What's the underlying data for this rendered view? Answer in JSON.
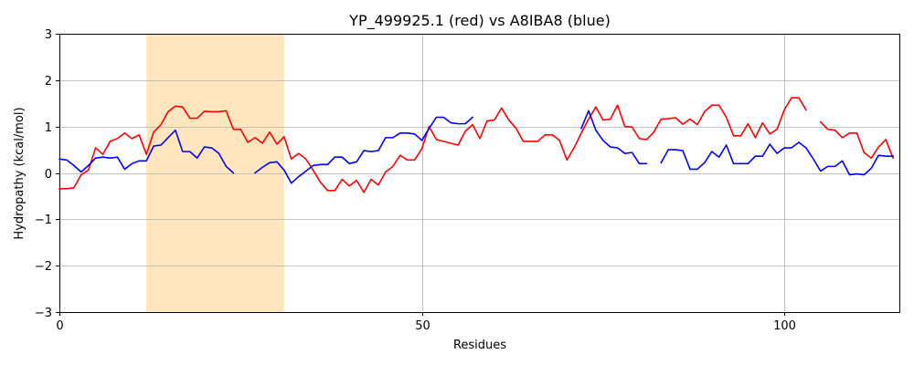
{
  "chart_data": {
    "type": "line",
    "title": "YP_499925.1 (red) vs A8IBA8 (blue)",
    "xlabel": "Residues",
    "ylabel": "Hydropathy (kcal/mol)",
    "xlim": [
      0,
      116
    ],
    "ylim": [
      -3,
      3
    ],
    "xticks": [
      0,
      50,
      100
    ],
    "yticks": [
      -3,
      -2,
      -1,
      0,
      1,
      2,
      3
    ],
    "grid": true,
    "highlight": {
      "x_start": 12,
      "x_end": 31,
      "color": "#ffe6bf"
    },
    "series": [
      {
        "color": "#ff0000",
        "segments": [
          [
            [
              0,
              -0.34
            ],
            [
              1,
              -0.34
            ],
            [
              2,
              -0.32
            ],
            [
              3,
              -0.04
            ],
            [
              4,
              0.06
            ],
            [
              5,
              0.54
            ],
            [
              6,
              0.4
            ],
            [
              7,
              0.68
            ],
            [
              8,
              0.74
            ],
            [
              9,
              0.86
            ],
            [
              10,
              0.74
            ],
            [
              11,
              0.82
            ],
            [
              12,
              0.4
            ],
            [
              13,
              0.88
            ],
            [
              14,
              1.04
            ],
            [
              15,
              1.32
            ],
            [
              16,
              1.44
            ],
            [
              17,
              1.42
            ],
            [
              18,
              1.18
            ],
            [
              19,
              1.18
            ],
            [
              20,
              1.33
            ],
            [
              21,
              1.32
            ],
            [
              22,
              1.32
            ],
            [
              23,
              1.34
            ],
            [
              24,
              0.94
            ],
            [
              25,
              0.94
            ],
            [
              26,
              0.66
            ],
            [
              27,
              0.76
            ],
            [
              28,
              0.64
            ],
            [
              29,
              0.88
            ],
            [
              30,
              0.62
            ],
            [
              31,
              0.78
            ],
            [
              32,
              0.3
            ],
            [
              33,
              0.42
            ],
            [
              34,
              0.3
            ],
            [
              35,
              0.06
            ],
            [
              36,
              -0.2
            ],
            [
              37,
              -0.38
            ],
            [
              38,
              -0.38
            ],
            [
              39,
              -0.14
            ],
            [
              40,
              -0.28
            ],
            [
              41,
              -0.16
            ],
            [
              42,
              -0.42
            ],
            [
              43,
              -0.14
            ],
            [
              44,
              -0.26
            ],
            [
              45,
              0.02
            ],
            [
              46,
              0.14
            ],
            [
              47,
              0.38
            ],
            [
              48,
              0.28
            ],
            [
              49,
              0.28
            ],
            [
              50,
              0.52
            ],
            [
              51,
              1.0
            ],
            [
              52,
              0.72
            ],
            [
              53,
              0.68
            ],
            [
              54,
              0.64
            ],
            [
              55,
              0.6
            ],
            [
              56,
              0.9
            ],
            [
              57,
              1.04
            ],
            [
              58,
              0.74
            ],
            [
              59,
              1.12
            ],
            [
              60,
              1.14
            ],
            [
              61,
              1.4
            ],
            [
              62,
              1.14
            ],
            [
              63,
              0.96
            ],
            [
              64,
              0.68
            ],
            [
              65,
              0.68
            ],
            [
              66,
              0.68
            ],
            [
              67,
              0.82
            ],
            [
              68,
              0.82
            ],
            [
              69,
              0.7
            ],
            [
              70,
              0.28
            ],
            [
              71,
              0.54
            ],
            [
              72,
              0.86
            ],
            [
              73,
              1.16
            ],
            [
              74,
              1.42
            ],
            [
              75,
              1.14
            ],
            [
              76,
              1.16
            ],
            [
              77,
              1.46
            ],
            [
              78,
              1.0
            ],
            [
              79,
              0.99
            ],
            [
              80,
              0.74
            ],
            [
              81,
              0.72
            ],
            [
              82,
              0.88
            ],
            [
              83,
              1.16
            ],
            [
              84,
              1.17
            ],
            [
              85,
              1.19
            ],
            [
              86,
              1.05
            ],
            [
              87,
              1.16
            ],
            [
              88,
              1.04
            ],
            [
              89,
              1.32
            ],
            [
              90,
              1.46
            ],
            [
              91,
              1.46
            ],
            [
              92,
              1.2
            ],
            [
              93,
              0.8
            ],
            [
              94,
              0.8
            ],
            [
              95,
              1.06
            ],
            [
              96,
              0.76
            ],
            [
              97,
              1.08
            ],
            [
              98,
              0.84
            ],
            [
              99,
              0.94
            ],
            [
              100,
              1.36
            ],
            [
              101,
              1.62
            ],
            [
              102,
              1.62
            ],
            [
              103,
              1.36
            ]
          ],
          [
            [
              105,
              1.1
            ],
            [
              106,
              0.94
            ],
            [
              107,
              0.92
            ],
            [
              108,
              0.76
            ],
            [
              109,
              0.86
            ],
            [
              110,
              0.86
            ],
            [
              111,
              0.44
            ],
            [
              112,
              0.32
            ],
            [
              113,
              0.56
            ],
            [
              114,
              0.72
            ],
            [
              115,
              0.32
            ]
          ]
        ]
      },
      {
        "color": "#0000ff",
        "segments": [
          [
            [
              0,
              0.3
            ],
            [
              1,
              0.28
            ],
            [
              2,
              0.16
            ],
            [
              3,
              0.02
            ],
            [
              4,
              0.16
            ],
            [
              5,
              0.32
            ],
            [
              6,
              0.34
            ],
            [
              7,
              0.32
            ],
            [
              8,
              0.34
            ],
            [
              9,
              0.08
            ],
            [
              10,
              0.2
            ],
            [
              11,
              0.26
            ],
            [
              12,
              0.26
            ],
            [
              13,
              0.58
            ],
            [
              14,
              0.6
            ],
            [
              15,
              0.76
            ],
            [
              16,
              0.92
            ],
            [
              17,
              0.46
            ],
            [
              18,
              0.46
            ],
            [
              19,
              0.32
            ],
            [
              20,
              0.56
            ],
            [
              21,
              0.54
            ],
            [
              22,
              0.42
            ],
            [
              23,
              0.14
            ],
            [
              24,
              0.0
            ]
          ],
          [
            [
              27,
              0.0
            ],
            [
              28,
              0.12
            ],
            [
              29,
              0.22
            ],
            [
              30,
              0.24
            ],
            [
              31,
              0.06
            ],
            [
              32,
              -0.22
            ],
            [
              33,
              -0.08
            ],
            [
              34,
              0.04
            ],
            [
              35,
              0.16
            ],
            [
              36,
              0.18
            ],
            [
              37,
              0.18
            ],
            [
              38,
              0.34
            ],
            [
              39,
              0.34
            ],
            [
              40,
              0.2
            ],
            [
              41,
              0.24
            ],
            [
              42,
              0.48
            ],
            [
              43,
              0.46
            ],
            [
              44,
              0.48
            ],
            [
              45,
              0.76
            ],
            [
              46,
              0.76
            ],
            [
              47,
              0.86
            ],
            [
              48,
              0.86
            ],
            [
              49,
              0.84
            ],
            [
              50,
              0.7
            ],
            [
              51,
              0.96
            ],
            [
              52,
              1.2
            ],
            [
              53,
              1.2
            ],
            [
              54,
              1.08
            ],
            [
              55,
              1.06
            ],
            [
              56,
              1.06
            ],
            [
              57,
              1.2
            ]
          ],
          [
            [
              72,
              0.96
            ],
            [
              73,
              1.34
            ],
            [
              74,
              0.92
            ],
            [
              75,
              0.7
            ],
            [
              76,
              0.56
            ],
            [
              77,
              0.54
            ],
            [
              78,
              0.42
            ],
            [
              79,
              0.44
            ],
            [
              80,
              0.2
            ],
            [
              81,
              0.2
            ]
          ],
          [
            [
              83,
              0.22
            ],
            [
              84,
              0.5
            ],
            [
              85,
              0.5
            ],
            [
              86,
              0.48
            ],
            [
              87,
              0.08
            ],
            [
              88,
              0.08
            ],
            [
              89,
              0.22
            ],
            [
              90,
              0.46
            ],
            [
              91,
              0.34
            ],
            [
              92,
              0.6
            ],
            [
              93,
              0.2
            ],
            [
              94,
              0.2
            ],
            [
              95,
              0.2
            ],
            [
              96,
              0.36
            ],
            [
              97,
              0.36
            ],
            [
              98,
              0.62
            ],
            [
              99,
              0.42
            ],
            [
              100,
              0.54
            ],
            [
              101,
              0.54
            ],
            [
              102,
              0.66
            ],
            [
              103,
              0.54
            ],
            [
              104,
              0.3
            ],
            [
              105,
              0.04
            ],
            [
              106,
              0.14
            ],
            [
              107,
              0.14
            ],
            [
              108,
              0.26
            ],
            [
              109,
              -0.04
            ],
            [
              110,
              -0.02
            ],
            [
              111,
              -0.04
            ],
            [
              112,
              0.1
            ],
            [
              113,
              0.38
            ],
            [
              114,
              0.36
            ],
            [
              115,
              0.36
            ]
          ]
        ]
      }
    ]
  }
}
